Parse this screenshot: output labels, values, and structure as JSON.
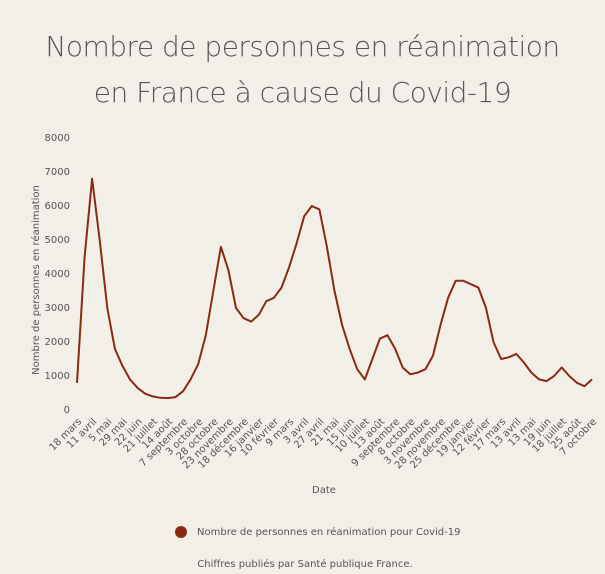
{
  "chart_data": {
    "type": "line",
    "title": "Nombre de personnes en réanimation en France à cause du Covid-19",
    "x_label": "Date",
    "y_label": "Nombre de personnes en réanimation",
    "note": "Chiffres publiés par Santé publique France.",
    "categories": [
      "18 mars",
      null,
      "11 avril",
      null,
      "5 mai",
      null,
      "29 mai",
      null,
      "22 juin",
      null,
      "21 juillet",
      null,
      "14 août",
      null,
      "7 septembre",
      null,
      "3 octobre",
      null,
      "28 octobre",
      null,
      "23 novembre",
      null,
      "18 décembre",
      null,
      "16 janvier",
      null,
      "10 février",
      null,
      "9 mars",
      null,
      "3 avril",
      null,
      "27 avril",
      null,
      "21 mai",
      null,
      "15 juin",
      null,
      "10 juillet",
      null,
      "13 août",
      null,
      "9 septembre",
      null,
      "8 octobre",
      null,
      "3 novembre",
      null,
      "28 novembre",
      null,
      "25 décembre",
      null,
      "19 janvier",
      null,
      "12 février",
      null,
      "17 mars",
      null,
      "13 avril",
      null,
      "13 mai",
      null,
      "19 juin",
      null,
      "18 juillet",
      null,
      "25 août",
      null,
      "7 octobre"
    ],
    "series": [
      {
        "name": "Nombre de personnes en réanimation pour Covid-19",
        "color": "#8b2a12",
        "values": [
          800,
          4500,
          6800,
          5000,
          3000,
          1800,
          1300,
          900,
          650,
          480,
          400,
          360,
          350,
          380,
          550,
          900,
          1350,
          2200,
          3500,
          4800,
          4100,
          3000,
          2700,
          2600,
          2800,
          3200,
          3300,
          3600,
          4200,
          4900,
          5700,
          6000,
          5900,
          4800,
          3500,
          2500,
          1800,
          1200,
          900,
          1500,
          2100,
          2200,
          1800,
          1250,
          1050,
          1100,
          1200,
          1600,
          2500,
          3300,
          3800,
          3800,
          3700,
          3600,
          3000,
          2000,
          1500,
          1550,
          1650,
          1400,
          1100,
          900,
          850,
          1000,
          1250,
          1000,
          800,
          700,
          900
        ]
      }
    ],
    "ylim": [
      0,
      8000
    ],
    "yticks": [
      0,
      1000,
      2000,
      3000,
      4000,
      5000,
      6000,
      7000,
      8000
    ],
    "grid": false,
    "legend": "bottom"
  }
}
